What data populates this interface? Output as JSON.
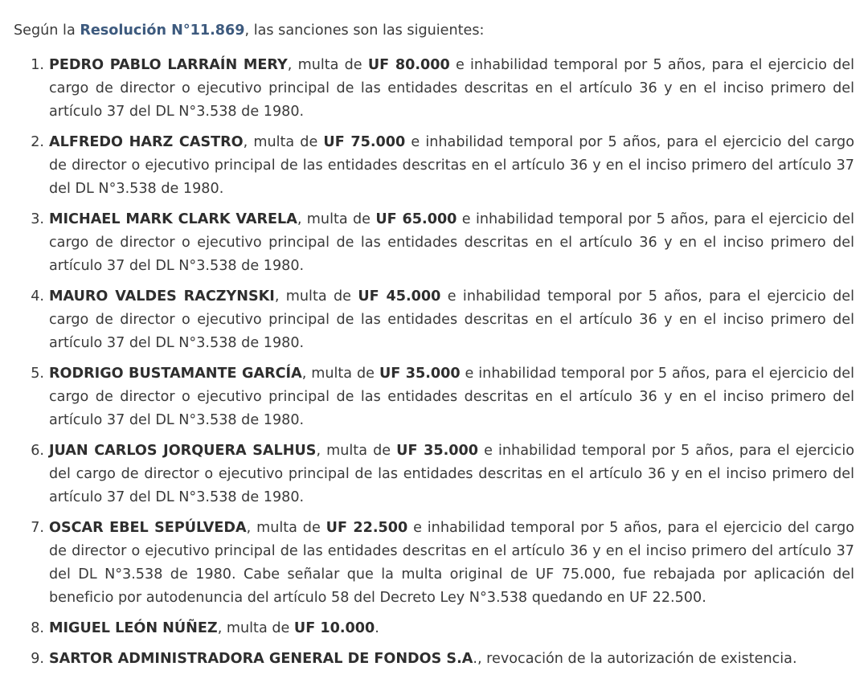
{
  "intro": {
    "prefix": "Según la ",
    "link": "Resolución N°11.869",
    "suffix": ", las sanciones son las siguientes:"
  },
  "items": [
    {
      "number": "1.",
      "name": "PEDRO PABLO LARRAÍN MERY",
      "before_fine": ", multa de ",
      "fine": "UF 80.000",
      "after_fine": " e inhabilidad temporal por 5 años, para el ejercicio del cargo de director o ejecutivo principal de las entidades descritas en el artículo 36 y en el inciso primero del artículo 37 del DL N°3.538 de 1980."
    },
    {
      "number": "2.",
      "name": "ALFREDO HARZ CASTRO",
      "before_fine": ", multa de ",
      "fine": "UF 75.000",
      "after_fine": " e inhabilidad temporal por 5 años, para el ejercicio del cargo de director o ejecutivo principal de las entidades descritas en el artículo 36 y en el inciso primero del artículo 37 del DL N°3.538 de 1980."
    },
    {
      "number": "3.",
      "name": "MICHAEL MARK CLARK VARELA",
      "before_fine": ", multa de ",
      "fine": "UF 65.000",
      "after_fine": " e inhabilidad temporal por 5 años, para el ejercicio del cargo de director o ejecutivo principal de las entidades descritas en el artículo 36 y en el inciso primero del artículo 37 del DL N°3.538 de 1980."
    },
    {
      "number": "4.",
      "name": "MAURO VALDES RACZYNSKI",
      "before_fine": ", multa de ",
      "fine": "UF 45.000",
      "after_fine": " e inhabilidad temporal por 5 años, para el ejercicio del cargo de director o ejecutivo principal de las entidades descritas en el artículo 36 y en el inciso primero del artículo 37 del DL N°3.538 de 1980."
    },
    {
      "number": "5.",
      "name": "RODRIGO BUSTAMANTE GARCÍA",
      "before_fine": ", multa de ",
      "fine": "UF 35.000",
      "after_fine": " e inhabilidad temporal por 5 años, para el ejercicio del cargo de director o ejecutivo principal de las entidades descritas en el artículo 36 y en el inciso primero del artículo 37 del DL N°3.538 de 1980."
    },
    {
      "number": "6.",
      "name": "JUAN CARLOS JORQUERA SALHUS",
      "before_fine": ", multa de ",
      "fine": "UF 35.000",
      "after_fine": " e inhabilidad temporal por 5 años, para el ejercicio del cargo de director o ejecutivo principal de las entidades descritas en el artículo 36 y en el inciso primero del artículo 37 del DL N°3.538 de 1980."
    },
    {
      "number": "7.",
      "name": "OSCAR EBEL SEPÚLVEDA",
      "before_fine": ", multa de ",
      "fine": "UF 22.500",
      "after_fine": " e inhabilidad temporal por 5 años, para el ejercicio del cargo de director o ejecutivo principal de las entidades descritas en el artículo 36 y en el inciso primero del artículo 37 del DL N°3.538 de 1980. Cabe señalar que la multa original de UF 75.000, fue rebajada por aplicación del beneficio por autodenuncia del artículo 58 del Decreto Ley N°3.538 quedando en UF 22.500."
    },
    {
      "number": "8.",
      "name": "MIGUEL LEÓN NÚÑEZ",
      "before_fine": ", multa de ",
      "fine": "UF 10.000",
      "after_fine": "."
    },
    {
      "number": "9.",
      "name": "SARTOR ADMINISTRADORA GENERAL DE FONDOS S.A",
      "after_name": "., revocación de la autorización de existencia."
    }
  ]
}
